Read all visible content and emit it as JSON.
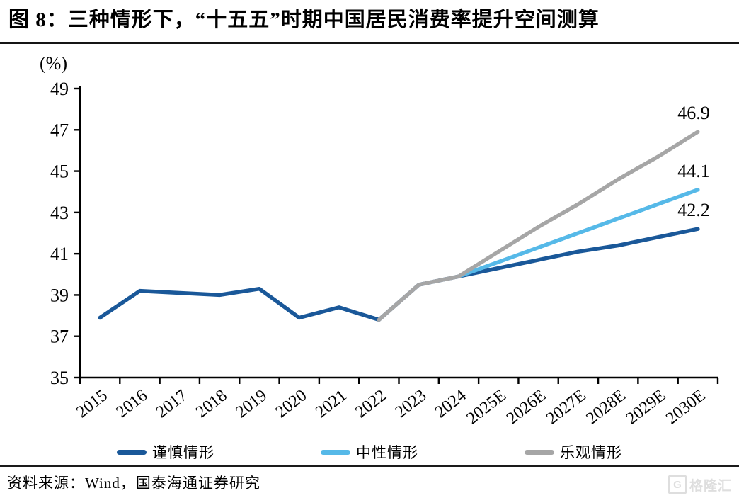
{
  "title": "图 8：三种情形下，“十五五”时期中国居民消费率提升空间测算",
  "source": "资料来源：Wind，国泰海通证券研究",
  "watermark": {
    "logo_letter": "G",
    "text": "格隆汇"
  },
  "chart_data": {
    "type": "line",
    "title": "三种情形下“十五五”时期中国居民消费率提升空间测算",
    "ylabel": "(%)",
    "xlabel": "",
    "ylim": [
      35,
      49
    ],
    "y_ticks": [
      35,
      37,
      39,
      41,
      43,
      45,
      47,
      49
    ],
    "grid": false,
    "legend_position": "bottom",
    "categories": [
      "2015",
      "2016",
      "2017",
      "2018",
      "2019",
      "2020",
      "2021",
      "2022",
      "2023",
      "2024",
      "2025E",
      "2026E",
      "2027E",
      "2028E",
      "2029E",
      "2030E"
    ],
    "series": [
      {
        "key": "cautious",
        "name": "谨慎情形",
        "color": "#1A5899",
        "end_label": "42.2",
        "values": [
          37.9,
          39.2,
          39.1,
          39.0,
          39.3,
          37.9,
          38.4,
          37.8,
          39.5,
          39.9,
          40.3,
          40.7,
          41.1,
          41.4,
          41.8,
          42.2
        ]
      },
      {
        "key": "neutral",
        "name": "中性情形",
        "color": "#56B9E8",
        "end_label": "44.1",
        "values": [
          null,
          null,
          null,
          null,
          null,
          null,
          null,
          null,
          null,
          39.9,
          40.6,
          41.3,
          42.0,
          42.7,
          43.4,
          44.1
        ]
      },
      {
        "key": "optimistic",
        "name": "乐观情形",
        "color": "#A6A6A6",
        "end_label": "46.9",
        "values": [
          null,
          null,
          null,
          null,
          null,
          null,
          null,
          37.8,
          39.5,
          39.9,
          41.1,
          42.3,
          43.4,
          44.6,
          45.7,
          46.9
        ]
      }
    ]
  }
}
